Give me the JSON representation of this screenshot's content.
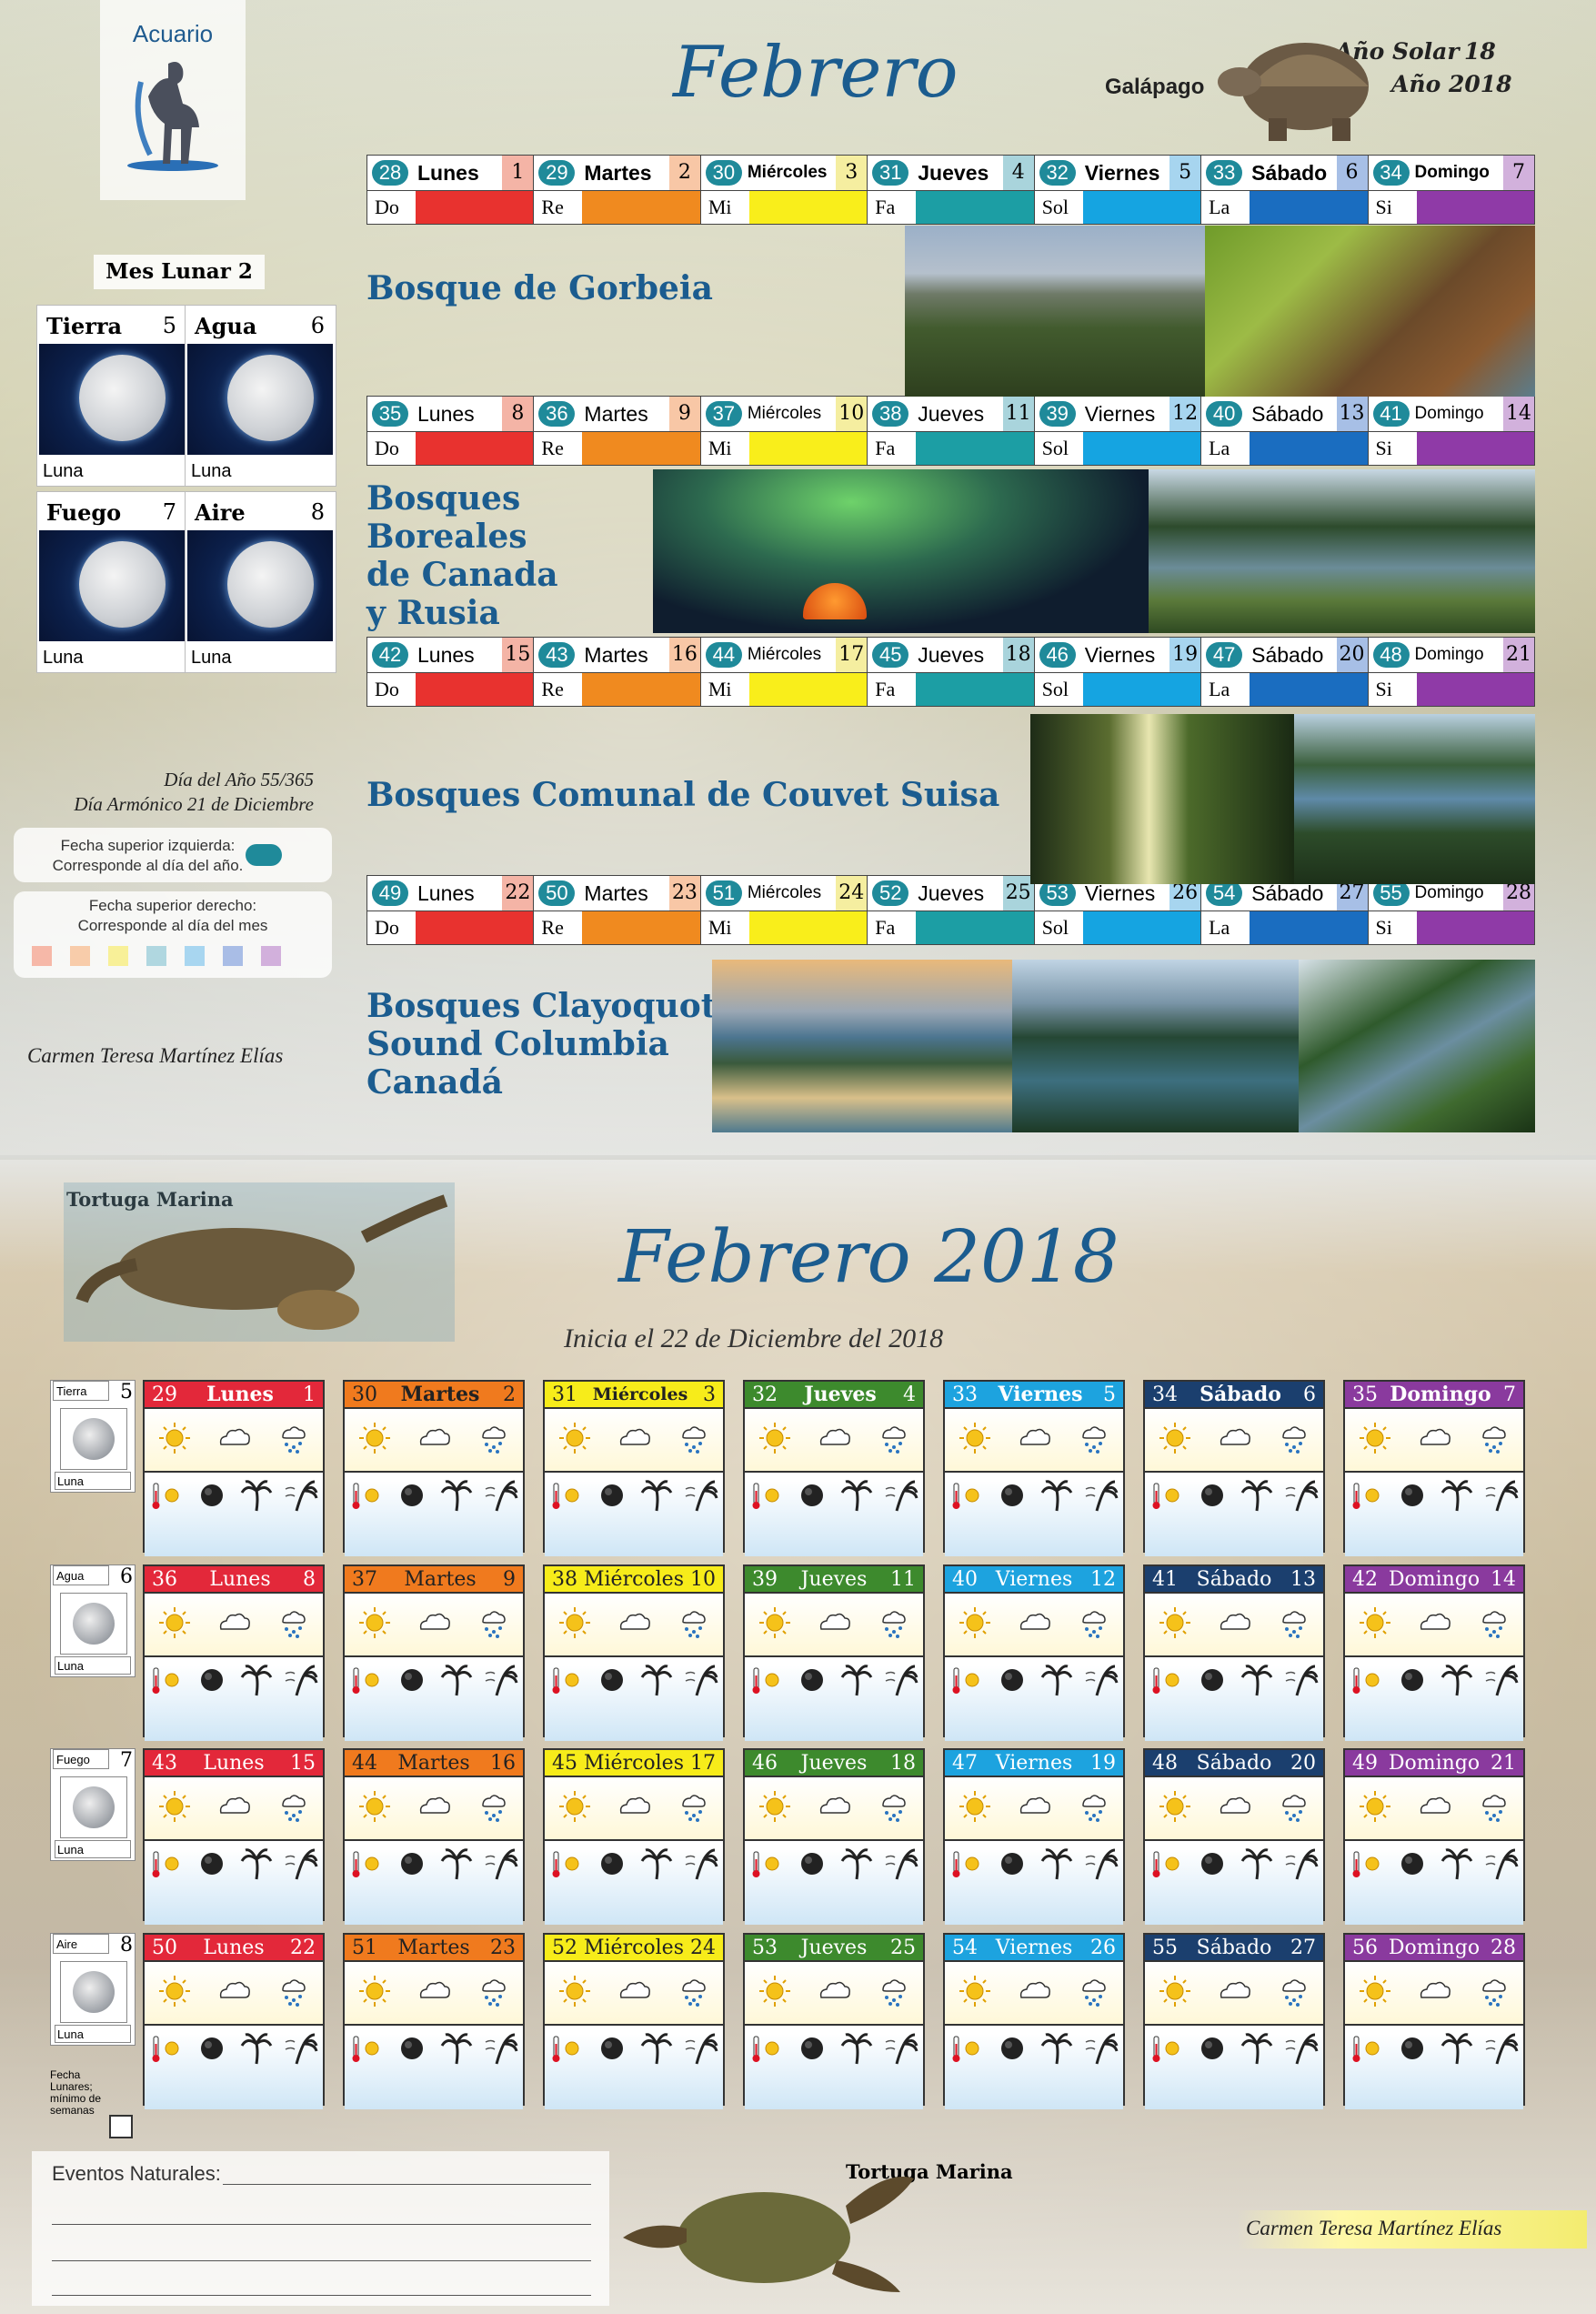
{
  "top": {
    "sign": "Acuario",
    "title": "Febrero",
    "solar_label": "Año Solar",
    "solar_value": "18",
    "year_label": "Año 2018",
    "animal": "Galápago",
    "moon_month_label": "Mes Lunar",
    "moon_month_value": "2",
    "moon_cards": [
      {
        "label": "Tierra",
        "num": "5",
        "luna": "Luna"
      },
      {
        "label": "Agua",
        "num": "6",
        "luna": "Luna"
      },
      {
        "label": "Fuego",
        "num": "7",
        "luna": "Luna"
      },
      {
        "label": "Aire",
        "num": "8",
        "luna": "Luna"
      }
    ],
    "dia_anio": "Día del Año 55/365",
    "dia_armonico": "Día Armónico 21 de Diciembre",
    "legend_left_1": "Fecha superior izquierda:",
    "legend_left_2": "Corresponde al día del año.",
    "legend_right_1": "Fecha superior derecho:",
    "legend_right_2": "Corresponde al día del mes",
    "author": "Carmen Teresa Martínez Elías",
    "notes": [
      "Do",
      "Re",
      "Mi",
      "Fa",
      "Sol",
      "La",
      "Si"
    ],
    "note_colors": [
      "#e8322f",
      "#f08a1f",
      "#f9ee1b",
      "#1c9ea4",
      "#15a4e1",
      "#1a6dc0",
      "#8f3aa7"
    ],
    "legend_colors": [
      "#f6b8a8",
      "#f8ccaa",
      "#f8f098",
      "#b0d7e0",
      "#a8d6f0",
      "#a9bde6",
      "#d2b0dc"
    ],
    "weeks": [
      {
        "title_lines": [
          "Bosque de Gorbeia"
        ],
        "days": [
          {
            "n": "28",
            "name": "Lunes",
            "d": "1"
          },
          {
            "n": "29",
            "name": "Martes",
            "d": "2"
          },
          {
            "n": "30",
            "name": "Miércoles",
            "d": "3"
          },
          {
            "n": "31",
            "name": "Jueves",
            "d": "4"
          },
          {
            "n": "32",
            "name": "Viernes",
            "d": "5"
          },
          {
            "n": "33",
            "name": "Sábado",
            "d": "6"
          },
          {
            "n": "34",
            "name": "Domingo",
            "d": "7"
          }
        ]
      },
      {
        "title_lines": [
          "Bosques",
          "Boreales",
          "de Canada",
          "y Rusia"
        ],
        "days": [
          {
            "n": "35",
            "name": "Lunes",
            "d": "8"
          },
          {
            "n": "36",
            "name": "Martes",
            "d": "9"
          },
          {
            "n": "37",
            "name": "Miércoles",
            "d": "10"
          },
          {
            "n": "38",
            "name": "Jueves",
            "d": "11"
          },
          {
            "n": "39",
            "name": "Viernes",
            "d": "12"
          },
          {
            "n": "40",
            "name": "Sábado",
            "d": "13"
          },
          {
            "n": "41",
            "name": "Domingo",
            "d": "14"
          }
        ]
      },
      {
        "title_lines": [
          "Bosques Comunal de Couvet Suisa"
        ],
        "days": [
          {
            "n": "42",
            "name": "Lunes",
            "d": "15"
          },
          {
            "n": "43",
            "name": "Martes",
            "d": "16"
          },
          {
            "n": "44",
            "name": "Miércoles",
            "d": "17"
          },
          {
            "n": "45",
            "name": "Jueves",
            "d": "18"
          },
          {
            "n": "46",
            "name": "Viernes",
            "d": "19"
          },
          {
            "n": "47",
            "name": "Sábado",
            "d": "20"
          },
          {
            "n": "48",
            "name": "Domingo",
            "d": "21"
          }
        ]
      },
      {
        "title_lines": [
          "Bosques Clayoquot",
          "Sound Columbia",
          "Canadá"
        ],
        "days": [
          {
            "n": "49",
            "name": "Lunes",
            "d": "22"
          },
          {
            "n": "50",
            "name": "Martes",
            "d": "23"
          },
          {
            "n": "51",
            "name": "Miércoles",
            "d": "24"
          },
          {
            "n": "52",
            "name": "Jueves",
            "d": "25"
          },
          {
            "n": "53",
            "name": "Viernes",
            "d": "26"
          },
          {
            "n": "54",
            "name": "Sábado",
            "d": "27"
          },
          {
            "n": "55",
            "name": "Domingo",
            "d": "28"
          }
        ]
      }
    ]
  },
  "bottom": {
    "turtle_label_1": "Tortuga Marina",
    "title": "Febrero 2018",
    "subtitle": "Inicia el 22 de Diciembre del 2018",
    "side_cards": [
      {
        "label": "Tierra",
        "num": "5",
        "luna": "Luna"
      },
      {
        "label": "Agua",
        "num": "6",
        "luna": "Luna"
      },
      {
        "label": "Fuego",
        "num": "7",
        "luna": "Luna"
      },
      {
        "label": "Aire",
        "num": "8",
        "luna": "Luna"
      }
    ],
    "fecha_note": "Fecha Lunares; mínimo de semanas",
    "header_colors": [
      "#e3283a",
      "#f07a1e",
      "#f7ec1a",
      "#3d8a2d",
      "#1da3df",
      "#1b3f6e",
      "#8a3a9e"
    ],
    "header_text_colors": [
      "#fff",
      "#222",
      "#222",
      "#fff",
      "#fff",
      "#fff",
      "#fff"
    ],
    "rows": [
      [
        {
          "n": "29",
          "name": "Lunes",
          "d": "1"
        },
        {
          "n": "30",
          "name": "Martes",
          "d": "2"
        },
        {
          "n": "31",
          "name": "Miércoles",
          "d": "3"
        },
        {
          "n": "32",
          "name": "Jueves",
          "d": "4"
        },
        {
          "n": "33",
          "name": "Viernes",
          "d": "5"
        },
        {
          "n": "34",
          "name": "Sábado",
          "d": "6"
        },
        {
          "n": "35",
          "name": "Domingo",
          "d": "7"
        }
      ],
      [
        {
          "n": "36",
          "name": "Lunes",
          "d": "8"
        },
        {
          "n": "37",
          "name": "Martes",
          "d": "9"
        },
        {
          "n": "38",
          "name": "Miércoles",
          "d": "10"
        },
        {
          "n": "39",
          "name": "Jueves",
          "d": "11"
        },
        {
          "n": "40",
          "name": "Viernes",
          "d": "12"
        },
        {
          "n": "41",
          "name": "Sábado",
          "d": "13"
        },
        {
          "n": "42",
          "name": "Domingo",
          "d": "14"
        }
      ],
      [
        {
          "n": "43",
          "name": "Lunes",
          "d": "15"
        },
        {
          "n": "44",
          "name": "Martes",
          "d": "16"
        },
        {
          "n": "45",
          "name": "Miércoles",
          "d": "17"
        },
        {
          "n": "46",
          "name": "Jueves",
          "d": "18"
        },
        {
          "n": "47",
          "name": "Viernes",
          "d": "19"
        },
        {
          "n": "48",
          "name": "Sábado",
          "d": "20"
        },
        {
          "n": "49",
          "name": "Domingo",
          "d": "21"
        }
      ],
      [
        {
          "n": "50",
          "name": "Lunes",
          "d": "22"
        },
        {
          "n": "51",
          "name": "Martes",
          "d": "23"
        },
        {
          "n": "52",
          "name": "Miércoles",
          "d": "24"
        },
        {
          "n": "53",
          "name": "Jueves",
          "d": "25"
        },
        {
          "n": "54",
          "name": "Viernes",
          "d": "26"
        },
        {
          "n": "55",
          "name": "Sábado",
          "d": "27"
        },
        {
          "n": "56",
          "name": "Domingo",
          "d": "28"
        }
      ]
    ],
    "weather_icons": [
      "sun-icon",
      "cloud-icon",
      "rain-icon",
      "thermometer-sun-icon",
      "moon-icon",
      "palm-icon",
      "wind-palm-icon"
    ],
    "eventos_label": "Eventos Naturales:",
    "turtle_label_2": "Tortuga Marina",
    "author": "Carmen Teresa Martínez Elías"
  }
}
